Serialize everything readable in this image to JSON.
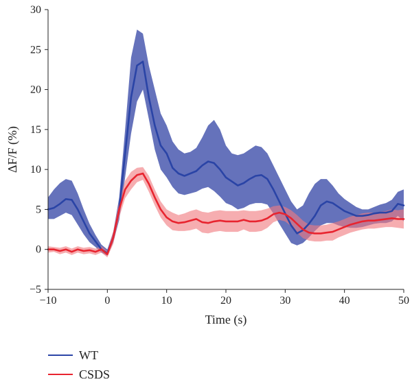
{
  "chart_data": {
    "type": "line",
    "xlabel": "Time (s)",
    "ylabel": "ΔF/F (%)",
    "xlim": [
      -10,
      50
    ],
    "ylim": [
      -5,
      30
    ],
    "xticks": [
      -10,
      0,
      10,
      20,
      30,
      40,
      50
    ],
    "yticks": [
      -5,
      0,
      5,
      10,
      15,
      20,
      25,
      30
    ],
    "grid": false,
    "legend_position": "bottom-left",
    "series": [
      {
        "name": "WT",
        "color": "#2a44a6",
        "band_color": "#3a4aa8",
        "x": [
          -10,
          -9,
          -8,
          -7,
          -6,
          -5,
          -4,
          -3,
          -2,
          -1,
          0,
          1,
          2,
          3,
          4,
          5,
          6,
          7,
          8,
          9,
          10,
          11,
          12,
          13,
          14,
          15,
          16,
          17,
          18,
          19,
          20,
          21,
          22,
          23,
          24,
          25,
          26,
          27,
          28,
          29,
          30,
          31,
          32,
          33,
          34,
          35,
          36,
          37,
          38,
          39,
          40,
          41,
          42,
          43,
          44,
          45,
          46,
          47,
          48,
          49,
          50
        ],
        "y": [
          5,
          5.2,
          5.7,
          6.3,
          6.2,
          5,
          3.5,
          2,
          1,
          0,
          -0.5,
          1.5,
          5,
          12,
          19,
          23,
          23.5,
          19,
          15.5,
          13,
          12,
          10.2,
          9.5,
          9.2,
          9.5,
          9.8,
          10.5,
          11,
          10.8,
          10,
          9,
          8.5,
          8,
          8.3,
          8.8,
          9.2,
          9.3,
          8.8,
          7.5,
          6,
          4.5,
          3,
          2,
          2.4,
          3.2,
          4.2,
          5.5,
          6,
          5.8,
          5.3,
          4.8,
          4.5,
          4.2,
          4.2,
          4.3,
          4.5,
          4.6,
          4.6,
          4.8,
          5.7,
          5.5
        ],
        "upper": [
          6.5,
          7.5,
          8.3,
          8.8,
          8.6,
          7,
          5,
          3.2,
          1.8,
          0.6,
          0,
          2.2,
          6.5,
          15,
          24,
          27.5,
          27,
          23,
          20,
          17,
          15.5,
          13.5,
          12.5,
          12,
          12.2,
          12.7,
          14,
          15.5,
          16.2,
          15,
          13,
          12,
          11.8,
          12,
          12.5,
          13,
          12.8,
          12,
          10.5,
          9,
          7.5,
          6,
          5,
          5.5,
          7,
          8.2,
          8.8,
          8.8,
          8,
          7,
          6.3,
          5.8,
          5.3,
          5,
          5,
          5.3,
          5.6,
          5.8,
          6.2,
          7.2,
          7.5
        ],
        "lower": [
          3.8,
          3.8,
          4.2,
          4.6,
          4.3,
          3.1,
          1.9,
          0.9,
          0.3,
          -0.4,
          -0.8,
          0.9,
          3.7,
          9,
          14.5,
          18.5,
          20,
          16.3,
          12.5,
          10,
          9,
          7.8,
          7,
          6.8,
          7,
          7.2,
          7.6,
          7.8,
          7.3,
          6.6,
          5.8,
          5.5,
          5,
          5.2,
          5.6,
          5.8,
          5.8,
          5.6,
          4.5,
          3.2,
          2,
          0.8,
          0.5,
          0.8,
          1.5,
          2.3,
          3,
          3.3,
          3.3,
          3,
          2.8,
          2.7,
          2.7,
          2.8,
          3,
          3.2,
          3.3,
          3.3,
          3.5,
          4.2,
          3.5
        ]
      },
      {
        "name": "CSDS",
        "color": "#e8242f",
        "band_color": "#f07a80",
        "x": [
          -10,
          -9,
          -8,
          -7,
          -6,
          -5,
          -4,
          -3,
          -2,
          -1,
          0,
          1,
          2,
          3,
          4,
          5,
          6,
          7,
          8,
          9,
          10,
          11,
          12,
          13,
          14,
          15,
          16,
          17,
          18,
          19,
          20,
          21,
          22,
          23,
          24,
          25,
          26,
          27,
          28,
          29,
          30,
          31,
          32,
          33,
          34,
          35,
          36,
          37,
          38,
          39,
          40,
          41,
          42,
          43,
          44,
          45,
          46,
          47,
          48,
          49,
          50
        ],
        "y": [
          0,
          0,
          -0.2,
          0,
          -0.3,
          0,
          -0.2,
          -0.1,
          -0.3,
          0,
          -0.6,
          1.5,
          5,
          7.5,
          8.6,
          9.3,
          9.5,
          8.2,
          6.5,
          5,
          4,
          3.5,
          3.3,
          3.4,
          3.6,
          3.8,
          3.4,
          3.3,
          3.5,
          3.6,
          3.5,
          3.5,
          3.5,
          3.7,
          3.5,
          3.5,
          3.6,
          3.9,
          4.4,
          4.6,
          4.4,
          3.9,
          3.2,
          2.5,
          2.1,
          2,
          2,
          2.1,
          2.2,
          2.5,
          2.8,
          3.1,
          3.3,
          3.5,
          3.6,
          3.6,
          3.7,
          3.8,
          3.9,
          3.8,
          3.8
        ],
        "upper": [
          0.4,
          0.3,
          0.2,
          0.4,
          0.1,
          0.4,
          0.2,
          0.3,
          0.1,
          0.4,
          -0.2,
          2.3,
          6,
          8.6,
          9.7,
          10.2,
          10.3,
          9.2,
          7.5,
          6,
          5,
          4.6,
          4.3,
          4.5,
          4.8,
          5,
          4.7,
          4.6,
          4.8,
          4.9,
          4.8,
          4.8,
          4.8,
          4.9,
          4.8,
          4.8,
          4.9,
          5.1,
          5.4,
          5.5,
          5.3,
          4.9,
          4.3,
          3.6,
          3.1,
          3,
          3,
          3.1,
          3.3,
          3.5,
          3.8,
          4.1,
          4.3,
          4.5,
          4.6,
          4.6,
          4.7,
          4.8,
          5,
          4.9,
          5
        ],
        "lower": [
          -0.4,
          -0.3,
          -0.6,
          -0.4,
          -0.7,
          -0.4,
          -0.6,
          -0.5,
          -0.7,
          -0.4,
          -1,
          0.7,
          4,
          6.4,
          7.5,
          8.4,
          8.7,
          7.2,
          5.5,
          4,
          3,
          2.4,
          2.3,
          2.3,
          2.4,
          2.6,
          2.1,
          2,
          2.2,
          2.3,
          2.2,
          2.2,
          2.2,
          2.5,
          2.2,
          2.2,
          2.3,
          2.7,
          3.4,
          3.7,
          3.5,
          2.9,
          2.1,
          1.4,
          1.1,
          1,
          1,
          1.1,
          1.1,
          1.5,
          1.8,
          2.1,
          2.3,
          2.5,
          2.6,
          2.6,
          2.7,
          2.8,
          2.8,
          2.7,
          2.6
        ]
      }
    ]
  }
}
